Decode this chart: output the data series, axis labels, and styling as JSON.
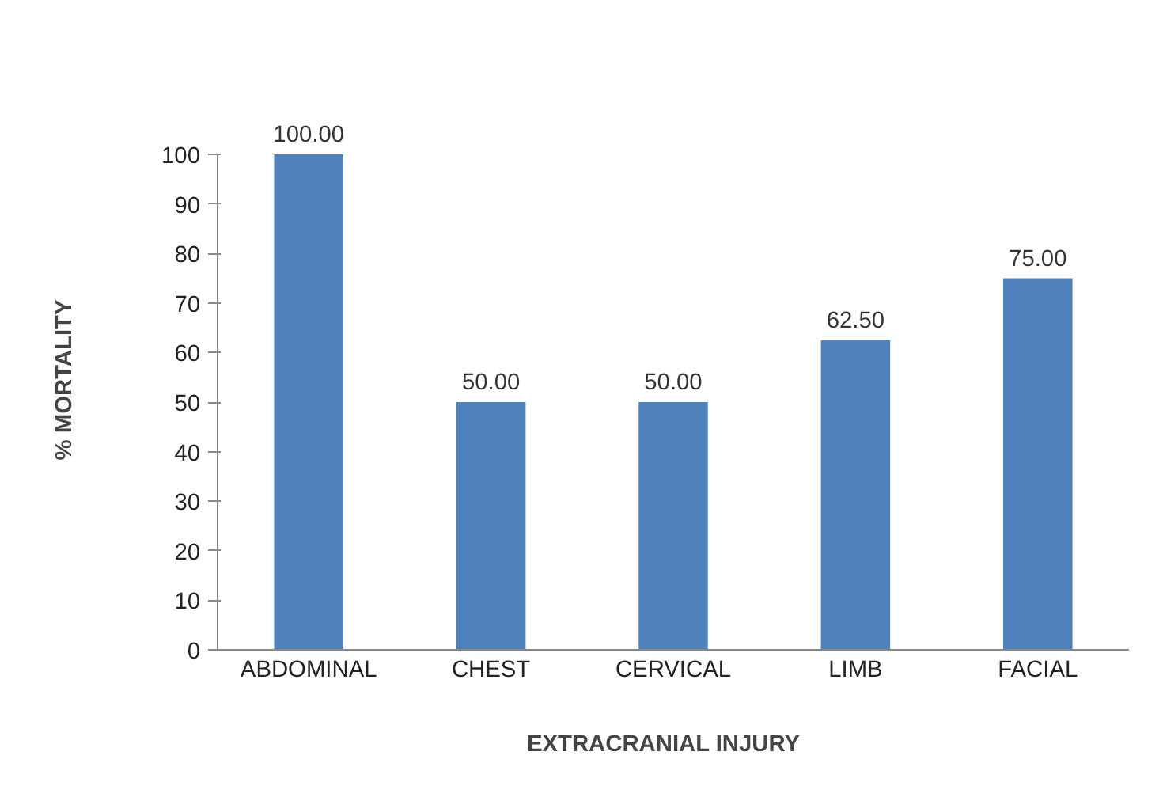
{
  "chart_data": {
    "type": "bar",
    "xlabel": "EXTRACRANIAL    INJURY",
    "ylabel": "% MORTALITY",
    "categories": [
      "ABDOMINAL",
      "CHEST",
      "CERVICAL",
      "LIMB",
      "FACIAL"
    ],
    "values": [
      100.0,
      50.0,
      50.0,
      62.5,
      75.0
    ],
    "value_labels": [
      "100.00",
      "50.00",
      "50.00",
      "62.50",
      "75.00"
    ],
    "color": "#4f81bd",
    "ylim": [
      0,
      100
    ],
    "yticks": [
      0,
      10,
      20,
      30,
      40,
      50,
      60,
      70,
      80,
      90,
      100
    ],
    "grid": false
  }
}
